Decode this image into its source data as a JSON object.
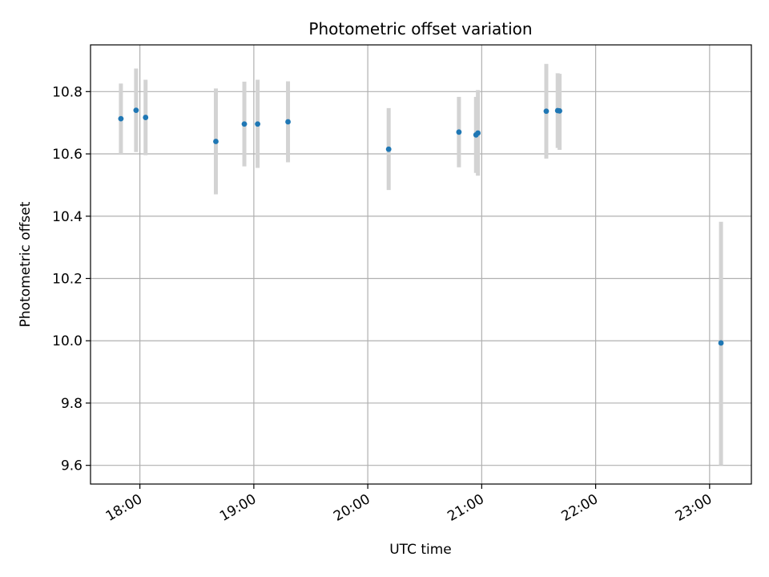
{
  "chart_data": {
    "type": "scatter",
    "title": "Photometric offset variation",
    "xlabel": "UTC time",
    "ylabel": "Photometric offset",
    "x_unit": "hours UTC",
    "xlim": [
      "17:34",
      "23:22"
    ],
    "ylim": [
      9.54,
      10.95
    ],
    "x_ticks": [
      "18:00",
      "19:00",
      "20:00",
      "21:00",
      "22:00",
      "23:00"
    ],
    "y_ticks": [
      "9.6",
      "9.8",
      "10.0",
      "10.2",
      "10.4",
      "10.6",
      "10.8"
    ],
    "grid": true,
    "legend": "none",
    "errorbar_color": "#d3d3d3",
    "marker_color": "#1f77b4",
    "points": [
      {
        "time": "17:50",
        "value": 10.713,
        "err_low": 10.6,
        "err_high": 10.826
      },
      {
        "time": "17:58",
        "value": 10.74,
        "err_low": 10.606,
        "err_high": 10.874
      },
      {
        "time": "18:03",
        "value": 10.717,
        "err_low": 10.596,
        "err_high": 10.838
      },
      {
        "time": "18:40",
        "value": 10.64,
        "err_low": 10.47,
        "err_high": 10.81
      },
      {
        "time": "18:55",
        "value": 10.696,
        "err_low": 10.56,
        "err_high": 10.832
      },
      {
        "time": "19:02",
        "value": 10.696,
        "err_low": 10.555,
        "err_high": 10.838
      },
      {
        "time": "19:18",
        "value": 10.703,
        "err_low": 10.573,
        "err_high": 10.833
      },
      {
        "time": "20:11",
        "value": 10.615,
        "err_low": 10.484,
        "err_high": 10.747
      },
      {
        "time": "20:48",
        "value": 10.67,
        "err_low": 10.557,
        "err_high": 10.783
      },
      {
        "time": "20:57",
        "value": 10.661,
        "err_low": 10.539,
        "err_high": 10.783
      },
      {
        "time": "20:58",
        "value": 10.667,
        "err_low": 10.53,
        "err_high": 10.805
      },
      {
        "time": "21:34",
        "value": 10.737,
        "err_low": 10.585,
        "err_high": 10.889
      },
      {
        "time": "21:40",
        "value": 10.739,
        "err_low": 10.619,
        "err_high": 10.859
      },
      {
        "time": "21:41",
        "value": 10.738,
        "err_low": 10.613,
        "err_high": 10.857
      },
      {
        "time": "23:06",
        "value": 9.993,
        "err_low": 9.6,
        "err_high": 10.382
      }
    ]
  }
}
